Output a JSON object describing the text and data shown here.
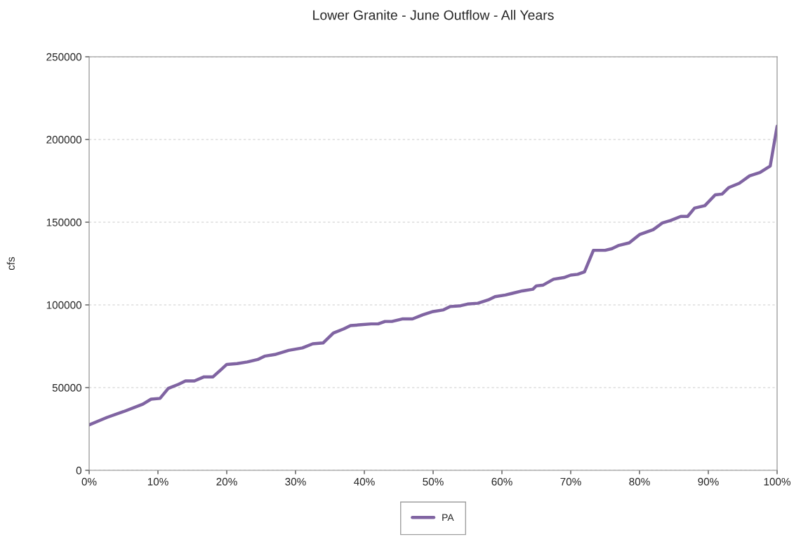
{
  "chart_data": {
    "type": "line",
    "title": "Lower Granite - June Outflow - All Years",
    "ylabel": "cfs",
    "x": [
      0,
      2.6,
      5,
      7.8,
      9,
      10.3,
      11.5,
      13,
      14,
      15.3,
      16.7,
      18,
      19.2,
      20,
      21.5,
      23,
      24.5,
      25.5,
      27,
      29,
      31,
      32.5,
      34,
      35.5,
      37,
      38,
      39.5,
      41,
      42,
      43,
      44,
      45.5,
      47,
      48.5,
      50,
      51.5,
      52.5,
      54,
      55,
      56.5,
      58,
      59,
      60.5,
      61.5,
      63,
      64.5,
      65,
      66,
      67.5,
      69,
      70,
      71,
      72,
      73.3,
      75,
      76,
      77,
      78.5,
      80,
      81,
      82,
      83.3,
      84.5,
      86,
      87,
      88,
      89.5,
      91,
      92,
      93,
      94.5,
      96,
      97.5,
      99,
      100
    ],
    "series": [
      {
        "name": "PA",
        "color": "#8064a2",
        "values": [
          27500,
          32000,
          35500,
          40000,
          43000,
          43500,
          49500,
          52000,
          54000,
          54000,
          56500,
          56500,
          61000,
          64000,
          64500,
          65500,
          67000,
          69000,
          70000,
          72500,
          74000,
          76500,
          77000,
          83000,
          85500,
          87500,
          88000,
          88500,
          88500,
          90000,
          90000,
          91500,
          91500,
          94000,
          96000,
          97000,
          99000,
          99500,
          100500,
          101000,
          103000,
          105000,
          106000,
          107000,
          108500,
          109500,
          111500,
          112000,
          115500,
          116500,
          118000,
          118500,
          120000,
          133000,
          133000,
          134000,
          136000,
          137500,
          142500,
          144000,
          145500,
          149500,
          151000,
          153500,
          153500,
          158500,
          160000,
          166500,
          167000,
          171000,
          173500,
          178000,
          180000,
          184000,
          208000
        ]
      }
    ],
    "xlim": [
      0,
      100
    ],
    "xticks": [
      {
        "value": 0,
        "label": "0%"
      },
      {
        "value": 10,
        "label": "10%"
      },
      {
        "value": 20,
        "label": "20%"
      },
      {
        "value": 30,
        "label": "30%"
      },
      {
        "value": 40,
        "label": "40%"
      },
      {
        "value": 50,
        "label": "50%"
      },
      {
        "value": 60,
        "label": "60%"
      },
      {
        "value": 70,
        "label": "70%"
      },
      {
        "value": 80,
        "label": "80%"
      },
      {
        "value": 90,
        "label": "90%"
      },
      {
        "value": 100,
        "label": "100%"
      }
    ],
    "ylim": [
      0,
      250000
    ],
    "yticks": [
      0,
      50000,
      100000,
      150000,
      200000,
      250000
    ],
    "grid": "y",
    "legend": "bottom",
    "marker": "none",
    "line_style": "solid"
  }
}
